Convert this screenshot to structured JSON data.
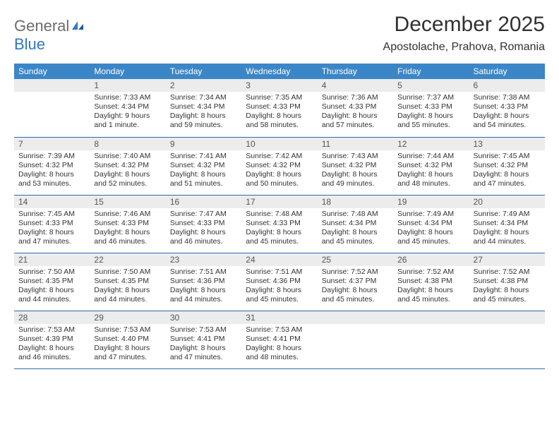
{
  "logo": {
    "word1": "General",
    "word2": "Blue"
  },
  "title": "December 2025",
  "location": "Apostolache, Prahova, Romania",
  "colors": {
    "header_bg": "#3b86c6",
    "header_text": "#ffffff",
    "daynum_bg": "#ececec",
    "daynum_text": "#555555",
    "rule": "#2a6ca8",
    "logo_gray": "#6c6c6c",
    "logo_blue": "#2f78c1"
  },
  "weekdays": [
    "Sunday",
    "Monday",
    "Tuesday",
    "Wednesday",
    "Thursday",
    "Friday",
    "Saturday"
  ],
  "weeks": [
    [
      null,
      {
        "n": "1",
        "sr": "Sunrise: 7:33 AM",
        "ss": "Sunset: 4:34 PM",
        "d1": "Daylight: 9 hours",
        "d2": "and 1 minute."
      },
      {
        "n": "2",
        "sr": "Sunrise: 7:34 AM",
        "ss": "Sunset: 4:34 PM",
        "d1": "Daylight: 8 hours",
        "d2": "and 59 minutes."
      },
      {
        "n": "3",
        "sr": "Sunrise: 7:35 AM",
        "ss": "Sunset: 4:33 PM",
        "d1": "Daylight: 8 hours",
        "d2": "and 58 minutes."
      },
      {
        "n": "4",
        "sr": "Sunrise: 7:36 AM",
        "ss": "Sunset: 4:33 PM",
        "d1": "Daylight: 8 hours",
        "d2": "and 57 minutes."
      },
      {
        "n": "5",
        "sr": "Sunrise: 7:37 AM",
        "ss": "Sunset: 4:33 PM",
        "d1": "Daylight: 8 hours",
        "d2": "and 55 minutes."
      },
      {
        "n": "6",
        "sr": "Sunrise: 7:38 AM",
        "ss": "Sunset: 4:33 PM",
        "d1": "Daylight: 8 hours",
        "d2": "and 54 minutes."
      }
    ],
    [
      {
        "n": "7",
        "sr": "Sunrise: 7:39 AM",
        "ss": "Sunset: 4:32 PM",
        "d1": "Daylight: 8 hours",
        "d2": "and 53 minutes."
      },
      {
        "n": "8",
        "sr": "Sunrise: 7:40 AM",
        "ss": "Sunset: 4:32 PM",
        "d1": "Daylight: 8 hours",
        "d2": "and 52 minutes."
      },
      {
        "n": "9",
        "sr": "Sunrise: 7:41 AM",
        "ss": "Sunset: 4:32 PM",
        "d1": "Daylight: 8 hours",
        "d2": "and 51 minutes."
      },
      {
        "n": "10",
        "sr": "Sunrise: 7:42 AM",
        "ss": "Sunset: 4:32 PM",
        "d1": "Daylight: 8 hours",
        "d2": "and 50 minutes."
      },
      {
        "n": "11",
        "sr": "Sunrise: 7:43 AM",
        "ss": "Sunset: 4:32 PM",
        "d1": "Daylight: 8 hours",
        "d2": "and 49 minutes."
      },
      {
        "n": "12",
        "sr": "Sunrise: 7:44 AM",
        "ss": "Sunset: 4:32 PM",
        "d1": "Daylight: 8 hours",
        "d2": "and 48 minutes."
      },
      {
        "n": "13",
        "sr": "Sunrise: 7:45 AM",
        "ss": "Sunset: 4:32 PM",
        "d1": "Daylight: 8 hours",
        "d2": "and 47 minutes."
      }
    ],
    [
      {
        "n": "14",
        "sr": "Sunrise: 7:45 AM",
        "ss": "Sunset: 4:33 PM",
        "d1": "Daylight: 8 hours",
        "d2": "and 47 minutes."
      },
      {
        "n": "15",
        "sr": "Sunrise: 7:46 AM",
        "ss": "Sunset: 4:33 PM",
        "d1": "Daylight: 8 hours",
        "d2": "and 46 minutes."
      },
      {
        "n": "16",
        "sr": "Sunrise: 7:47 AM",
        "ss": "Sunset: 4:33 PM",
        "d1": "Daylight: 8 hours",
        "d2": "and 46 minutes."
      },
      {
        "n": "17",
        "sr": "Sunrise: 7:48 AM",
        "ss": "Sunset: 4:33 PM",
        "d1": "Daylight: 8 hours",
        "d2": "and 45 minutes."
      },
      {
        "n": "18",
        "sr": "Sunrise: 7:48 AM",
        "ss": "Sunset: 4:34 PM",
        "d1": "Daylight: 8 hours",
        "d2": "and 45 minutes."
      },
      {
        "n": "19",
        "sr": "Sunrise: 7:49 AM",
        "ss": "Sunset: 4:34 PM",
        "d1": "Daylight: 8 hours",
        "d2": "and 45 minutes."
      },
      {
        "n": "20",
        "sr": "Sunrise: 7:49 AM",
        "ss": "Sunset: 4:34 PM",
        "d1": "Daylight: 8 hours",
        "d2": "and 44 minutes."
      }
    ],
    [
      {
        "n": "21",
        "sr": "Sunrise: 7:50 AM",
        "ss": "Sunset: 4:35 PM",
        "d1": "Daylight: 8 hours",
        "d2": "and 44 minutes."
      },
      {
        "n": "22",
        "sr": "Sunrise: 7:50 AM",
        "ss": "Sunset: 4:35 PM",
        "d1": "Daylight: 8 hours",
        "d2": "and 44 minutes."
      },
      {
        "n": "23",
        "sr": "Sunrise: 7:51 AM",
        "ss": "Sunset: 4:36 PM",
        "d1": "Daylight: 8 hours",
        "d2": "and 44 minutes."
      },
      {
        "n": "24",
        "sr": "Sunrise: 7:51 AM",
        "ss": "Sunset: 4:36 PM",
        "d1": "Daylight: 8 hours",
        "d2": "and 45 minutes."
      },
      {
        "n": "25",
        "sr": "Sunrise: 7:52 AM",
        "ss": "Sunset: 4:37 PM",
        "d1": "Daylight: 8 hours",
        "d2": "and 45 minutes."
      },
      {
        "n": "26",
        "sr": "Sunrise: 7:52 AM",
        "ss": "Sunset: 4:38 PM",
        "d1": "Daylight: 8 hours",
        "d2": "and 45 minutes."
      },
      {
        "n": "27",
        "sr": "Sunrise: 7:52 AM",
        "ss": "Sunset: 4:38 PM",
        "d1": "Daylight: 8 hours",
        "d2": "and 45 minutes."
      }
    ],
    [
      {
        "n": "28",
        "sr": "Sunrise: 7:53 AM",
        "ss": "Sunset: 4:39 PM",
        "d1": "Daylight: 8 hours",
        "d2": "and 46 minutes."
      },
      {
        "n": "29",
        "sr": "Sunrise: 7:53 AM",
        "ss": "Sunset: 4:40 PM",
        "d1": "Daylight: 8 hours",
        "d2": "and 47 minutes."
      },
      {
        "n": "30",
        "sr": "Sunrise: 7:53 AM",
        "ss": "Sunset: 4:41 PM",
        "d1": "Daylight: 8 hours",
        "d2": "and 47 minutes."
      },
      {
        "n": "31",
        "sr": "Sunrise: 7:53 AM",
        "ss": "Sunset: 4:41 PM",
        "d1": "Daylight: 8 hours",
        "d2": "and 48 minutes."
      },
      null,
      null,
      null
    ]
  ]
}
